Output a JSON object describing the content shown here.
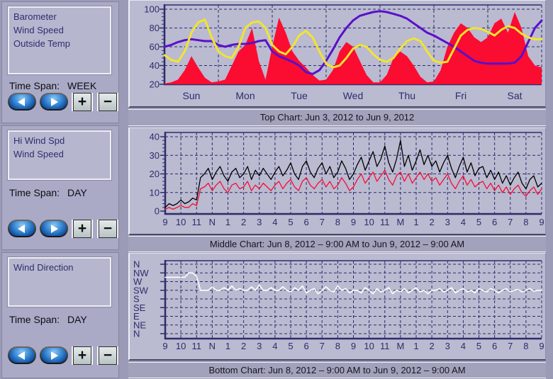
{
  "colors": {
    "axis": "#2d2d6b",
    "wind_speed_red": "#fb0c31",
    "barometer_purple": "#5a10c9",
    "outside_temp_yellow": "#f2e431",
    "hi_wind_black": "#000000",
    "wind_direction_white": "#ffffff",
    "panel_bg": "#babad1",
    "sidebar_bg": "#aaaac6",
    "caption_bg": "#a2a2bc"
  },
  "sidebar": {
    "sections": [
      {
        "legend": [
          "Barometer",
          "Wind Speed",
          "Outside Temp"
        ],
        "time_span_label": "Time Span:",
        "time_span_value": "WEEK"
      },
      {
        "legend": [
          "Hi Wind Spd",
          "Wind Speed"
        ],
        "time_span_label": "Time Span:",
        "time_span_value": "DAY"
      },
      {
        "legend": [
          "Wind Direction"
        ],
        "time_span_label": "Time Span:",
        "time_span_value": "DAY"
      }
    ]
  },
  "controls": {
    "plus": "+",
    "minus": "−"
  },
  "captions": {
    "top": "Top Chart:  Jun 3, 2012  to  Jun 9, 2012",
    "middle": "Middle Chart:  Jun 8, 2012 – 9:00 AM  to  Jun 9, 2012 – 9:00 AM",
    "bottom": "Bottom Chart:  Jun 8, 2012 – 9:00 AM  to  Jun 9, 2012 – 9:00 AM"
  },
  "chart_data": [
    {
      "type": "line",
      "title": "Top Chart",
      "date_range": "Jun 3, 2012 to Jun 9, 2012",
      "x_labels": [
        "Sun",
        "Mon",
        "Tue",
        "Wed",
        "Thu",
        "Fri",
        "Sat"
      ],
      "ylim": [
        20,
        100
      ],
      "yticks": [
        20,
        40,
        60,
        80,
        100
      ],
      "grid": "dashed",
      "legend_position": "left-panel",
      "series": [
        {
          "name": "Wind Speed",
          "style": "area",
          "color": "#fb0c31",
          "values": [
            21,
            22,
            25,
            35,
            50,
            38,
            27,
            22,
            23,
            25,
            40,
            55,
            62,
            80,
            45,
            25,
            60,
            91,
            75,
            55,
            45,
            38,
            30,
            24,
            25,
            35,
            55,
            65,
            60,
            45,
            30,
            22,
            22,
            30,
            48,
            55,
            50,
            40,
            28,
            22,
            23,
            35,
            60,
            75,
            85,
            80,
            70,
            65,
            70,
            85,
            90,
            75,
            97,
            80,
            50,
            40,
            38
          ]
        },
        {
          "name": "Barometer",
          "style": "line",
          "color": "#5a10c9",
          "values": [
            60,
            62,
            65,
            67,
            68,
            67,
            66,
            66,
            62,
            60,
            62,
            63,
            63,
            64,
            66,
            67,
            55,
            50,
            47,
            44,
            40,
            33,
            31,
            35,
            45,
            57,
            70,
            80,
            88,
            93,
            95,
            97,
            98,
            97,
            95,
            93,
            90,
            85,
            80,
            75,
            72,
            68,
            64,
            60,
            55,
            50,
            45,
            43,
            42,
            42,
            42,
            42,
            43,
            50,
            65,
            80,
            88
          ]
        },
        {
          "name": "Outside Temp",
          "style": "line",
          "color": "#f2e431",
          "values": [
            51,
            46,
            44,
            55,
            75,
            86,
            89,
            70,
            55,
            50,
            48,
            60,
            80,
            86,
            87,
            80,
            62,
            55,
            52,
            60,
            72,
            77,
            70,
            55,
            42,
            38,
            40,
            48,
            58,
            62,
            60,
            52,
            46,
            44,
            48,
            58,
            66,
            69,
            66,
            55,
            45,
            43,
            44,
            58,
            72,
            78,
            80,
            79,
            76,
            72,
            78,
            82,
            80,
            74,
            70,
            68,
            68
          ]
        }
      ]
    },
    {
      "type": "line",
      "title": "Middle Chart",
      "date_range": "Jun 8, 2012 – 9:00 AM to Jun 9, 2012 – 9:00 AM",
      "x_labels": [
        "9",
        "10",
        "11",
        "N",
        "1",
        "2",
        "3",
        "4",
        "5",
        "6",
        "7",
        "8",
        "9",
        "10",
        "11",
        "M",
        "1",
        "2",
        "3",
        "4",
        "5",
        "6",
        "7",
        "8",
        "9"
      ],
      "ylim": [
        0,
        40
      ],
      "yticks": [
        0,
        10,
        20,
        30,
        40
      ],
      "grid": "dashed",
      "series": [
        {
          "name": "Hi Wind Spd",
          "style": "line",
          "color": "#000000",
          "values": [
            2,
            4,
            3,
            4,
            6,
            4,
            5,
            7,
            6,
            18,
            20,
            23,
            17,
            21,
            24,
            19,
            16,
            21,
            23,
            18,
            20,
            24,
            17,
            22,
            19,
            23,
            20,
            17,
            21,
            24,
            19,
            22,
            26,
            20,
            17,
            24,
            27,
            21,
            18,
            23,
            26,
            20,
            24,
            18,
            21,
            27,
            23,
            17,
            20,
            25,
            29,
            22,
            27,
            32,
            24,
            28,
            35,
            26,
            21,
            28,
            38,
            24,
            30,
            22,
            27,
            33,
            25,
            30,
            24,
            27,
            21,
            26,
            30,
            23,
            18,
            24,
            29,
            21,
            26,
            19,
            23,
            24,
            18,
            22,
            17,
            21,
            15,
            19,
            14,
            18,
            21,
            15,
            12,
            17,
            19,
            13,
            15
          ]
        },
        {
          "name": "Wind Speed",
          "style": "line",
          "color": "#fb0c31",
          "values": [
            1,
            2,
            1,
            2,
            3,
            2,
            2,
            4,
            3,
            12,
            13,
            15,
            11,
            14,
            16,
            12,
            10,
            14,
            15,
            12,
            13,
            16,
            11,
            14,
            12,
            15,
            13,
            11,
            14,
            16,
            12,
            15,
            17,
            13,
            11,
            16,
            18,
            14,
            12,
            15,
            17,
            13,
            16,
            12,
            14,
            18,
            15,
            11,
            13,
            17,
            20,
            15,
            18,
            21,
            16,
            19,
            22,
            17,
            14,
            19,
            21,
            16,
            20,
            15,
            18,
            21,
            17,
            20,
            16,
            18,
            14,
            17,
            20,
            15,
            12,
            16,
            19,
            14,
            17,
            13,
            15,
            16,
            12,
            15,
            11,
            14,
            10,
            13,
            9,
            12,
            14,
            10,
            8,
            11,
            13,
            9,
            12
          ]
        }
      ]
    },
    {
      "type": "line",
      "title": "Bottom Chart",
      "date_range": "Jun 8, 2012 – 9:00 AM to Jun 9, 2012 – 9:00 AM",
      "x_labels": [
        "9",
        "10",
        "11",
        "N",
        "1",
        "2",
        "3",
        "4",
        "5",
        "6",
        "7",
        "8",
        "9",
        "10",
        "11",
        "M",
        "1",
        "2",
        "3",
        "4",
        "5",
        "6",
        "7",
        "8",
        "9"
      ],
      "ylim": [
        0,
        8
      ],
      "ytick_labels_top_to_bottom": [
        "N",
        "NW",
        "W",
        "SW",
        "S",
        "SE",
        "E",
        "NE",
        "N"
      ],
      "scale_note": "compass index: N(top)=8, NW=7, W=6, SW=5, S=4, SE=3, E=2, NE=1, N(bottom)=0",
      "grid": "dashed",
      "series": [
        {
          "name": "Wind Direction",
          "style": "line",
          "color": "#ffffff",
          "values": [
            6.5,
            6.5,
            6.5,
            6.5,
            6.5,
            6.5,
            7,
            7,
            6.6,
            5,
            5,
            5,
            5.4,
            5,
            5,
            5.3,
            5,
            5.5,
            5,
            5.2,
            5,
            5,
            5.4,
            5,
            5.6,
            5,
            5,
            5.3,
            5,
            5,
            5.4,
            5,
            4.8,
            5.3,
            5,
            5.5,
            4.7,
            5,
            5.2,
            4.6,
            5,
            5.4,
            5,
            4.8,
            5.5,
            5,
            5.2,
            4.7,
            5,
            5,
            4.7,
            5.3,
            5,
            4.6,
            5.2,
            4.8,
            5,
            5.3,
            4.6,
            5,
            4.8,
            5.2,
            4.7,
            5,
            5.3,
            4.8,
            5,
            4.6,
            5,
            5,
            5.2,
            4.8,
            5,
            5.3,
            4.7,
            5,
            5.2,
            4.8,
            5,
            4.7,
            5.2,
            5,
            4.8,
            5.2,
            5,
            4.7,
            5,
            5.2,
            4.8,
            5,
            5.1,
            4.8,
            5,
            5.2,
            4.9,
            5,
            5
          ]
        }
      ]
    }
  ]
}
